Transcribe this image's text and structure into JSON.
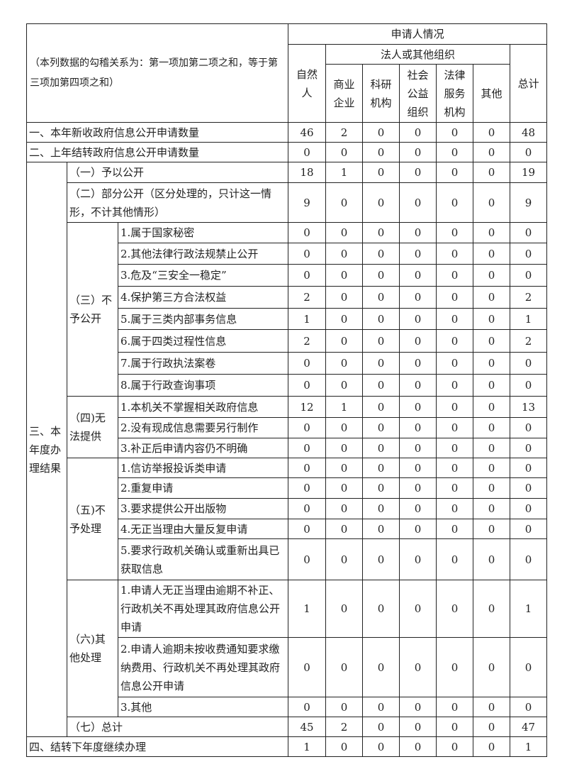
{
  "header": {
    "corner_note": "（本列数据的勾稽关系为：第一项加第二项之和，等于第三项加第四项之和）",
    "applicant": "申请人情况",
    "natural_person": "自然人",
    "legal_org": "法人或其他组织",
    "org_cols": [
      "商业企业",
      "科研机构",
      "社会公益组织",
      "法律服务机构",
      "其他"
    ],
    "total": "总计"
  },
  "rows": {
    "new_requests": {
      "label": "一、本年新收政府信息公开申请数量",
      "values": [
        "46",
        "2",
        "0",
        "0",
        "0",
        "0",
        "48"
      ]
    },
    "carried_over": {
      "label": "二、上年结转政府信息公开申请数量",
      "values": [
        "0",
        "0",
        "0",
        "0",
        "0",
        "0",
        "0"
      ]
    },
    "results": {
      "label": "三、本年度办理结果",
      "disclosed": {
        "label": "（一）予以公开",
        "values": [
          "18",
          "1",
          "0",
          "0",
          "0",
          "0",
          "19"
        ]
      },
      "partial": {
        "label": "（二）部分公开（区分处理的，只计这一情形，不计其他情形）",
        "values": [
          "9",
          "0",
          "0",
          "0",
          "0",
          "0",
          "9"
        ]
      },
      "groups": [
        {
          "label": "（三）不予公开",
          "items": [
            {
              "label": "1.属于国家秘密",
              "values": [
                "0",
                "0",
                "0",
                "0",
                "0",
                "0",
                "0"
              ]
            },
            {
              "label": "2.其他法律行政法规禁止公开",
              "values": [
                "0",
                "0",
                "0",
                "0",
                "0",
                "0",
                "0"
              ]
            },
            {
              "label": "3.危及“三安全一稳定”",
              "values": [
                "0",
                "0",
                "0",
                "0",
                "0",
                "0",
                "0"
              ]
            },
            {
              "label": "4.保护第三方合法权益",
              "values": [
                "2",
                "0",
                "0",
                "0",
                "0",
                "0",
                "2"
              ]
            },
            {
              "label": "5.属于三类内部事务信息",
              "values": [
                "1",
                "0",
                "0",
                "0",
                "0",
                "0",
                "1"
              ]
            },
            {
              "label": "6.属于四类过程性信息",
              "values": [
                "2",
                "0",
                "0",
                "0",
                "0",
                "0",
                "2"
              ]
            },
            {
              "label": "7.属于行政执法案卷",
              "values": [
                "0",
                "0",
                "0",
                "0",
                "0",
                "0",
                "0"
              ]
            },
            {
              "label": "8.属于行政查询事项",
              "values": [
                "0",
                "0",
                "0",
                "0",
                "0",
                "0",
                "0"
              ]
            }
          ]
        },
        {
          "label": "（四)无法提供",
          "items": [
            {
              "label": "1.本机关不掌握相关政府信息",
              "values": [
                "12",
                "1",
                "0",
                "0",
                "0",
                "0",
                "13"
              ]
            },
            {
              "label": "2.没有现成信息需要另行制作",
              "values": [
                "0",
                "0",
                "0",
                "0",
                "0",
                "0",
                "0"
              ]
            },
            {
              "label": "3.补正后申请内容仍不明确",
              "values": [
                "0",
                "0",
                "0",
                "0",
                "0",
                "0",
                "0"
              ]
            }
          ]
        },
        {
          "label": "（五)不予处理",
          "items": [
            {
              "label": "1.信访举报投诉类申请",
              "values": [
                "0",
                "0",
                "0",
                "0",
                "0",
                "0",
                "0"
              ]
            },
            {
              "label": "2.重复申请",
              "values": [
                "0",
                "0",
                "0",
                "0",
                "0",
                "0",
                "0"
              ]
            },
            {
              "label": "3.要求提供公开出版物",
              "values": [
                "0",
                "0",
                "0",
                "0",
                "0",
                "0",
                "0"
              ]
            },
            {
              "label": "4.无正当理由大量反复申请",
              "values": [
                "0",
                "0",
                "0",
                "0",
                "0",
                "0",
                "0"
              ]
            },
            {
              "label": "5.要求行政机关确认或重新出具已获取信息",
              "values": [
                "0",
                "0",
                "0",
                "0",
                "0",
                "0",
                "0"
              ]
            }
          ]
        },
        {
          "label": "（六)其他处理",
          "items": [
            {
              "label": "1.申请人无正当理由逾期不补正、行政机关不再处理其政府信息公开申请",
              "values": [
                "1",
                "0",
                "0",
                "0",
                "0",
                "0",
                "1"
              ]
            },
            {
              "label": "2.申请人逾期未按收费通知要求缴纳费用、行政机关不再处理其政府信息公开申请",
              "values": [
                "0",
                "0",
                "0",
                "0",
                "0",
                "0",
                "0"
              ]
            },
            {
              "label": "3.其他",
              "values": [
                "0",
                "0",
                "0",
                "0",
                "0",
                "0",
                "0"
              ]
            }
          ]
        }
      ],
      "total": {
        "label": "（七）总计",
        "values": [
          "45",
          "2",
          "0",
          "0",
          "0",
          "0",
          "47"
        ]
      }
    },
    "carry_forward": {
      "label": "四、结转下年度继续办理",
      "values": [
        "1",
        "0",
        "0",
        "0",
        "0",
        "0",
        "1"
      ]
    }
  }
}
